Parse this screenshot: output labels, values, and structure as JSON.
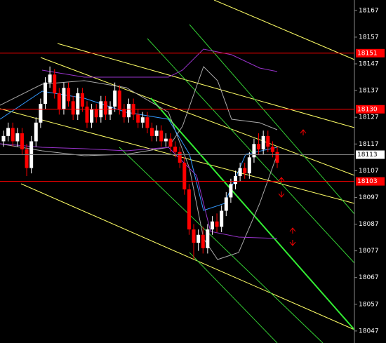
{
  "chart_data": {
    "type": "candlestick",
    "ylim": [
      18042.5,
      18170.9
    ],
    "yticks": [
      18167,
      18157,
      18147,
      18137,
      18127,
      18117,
      18107,
      18097,
      18087,
      18077,
      18067,
      18057,
      18047
    ],
    "up_color": "#ffffff",
    "down_color": "#ff0000",
    "open": [
      18118,
      18120,
      18123,
      18118,
      18121,
      18115,
      18108,
      18118,
      18125,
      18132,
      18140,
      18143,
      18136,
      18130,
      18138,
      18133,
      18128,
      18136,
      18131,
      18125,
      18130,
      18127,
      18133,
      18128,
      18131,
      18137,
      18130,
      18127,
      18132,
      18128,
      18125,
      18127,
      18123,
      18120,
      18122,
      18118,
      18119,
      18116,
      18114,
      18110,
      18100,
      18085,
      18080,
      18083,
      18078,
      18085,
      18088,
      18086,
      18092,
      18097,
      18102,
      18105,
      18108,
      18106,
      18112,
      18117,
      18115,
      18120,
      18116,
      18114
    ],
    "high": [
      18122,
      18125,
      18125,
      18123,
      18123,
      18117,
      18120,
      18127,
      18134,
      18142,
      18146,
      18145,
      18138,
      18140,
      18140,
      18135,
      18138,
      18138,
      18133,
      18132,
      18132,
      18135,
      18135,
      18133,
      18140,
      18139,
      18132,
      18134,
      18134,
      18130,
      18129,
      18129,
      18125,
      18124,
      18124,
      18121,
      18121,
      18118,
      18116,
      18112,
      18102,
      18087,
      18085,
      18086,
      18087,
      18090,
      18091,
      18094,
      18099,
      18104,
      18107,
      18110,
      18110,
      18114,
      18119,
      18121,
      18122,
      18122,
      18118,
      18116
    ],
    "low": [
      18116,
      18118,
      18116,
      18116,
      18113,
      18105,
      18106,
      18116,
      18123,
      18130,
      18138,
      18134,
      18128,
      18128,
      18131,
      18126,
      18126,
      18129,
      18123,
      18123,
      18125,
      18125,
      18126,
      18126,
      18129,
      18128,
      18125,
      18125,
      18126,
      18123,
      18123,
      18121,
      18118,
      18118,
      18116,
      18116,
      18114,
      18112,
      18108,
      18098,
      18083,
      18074,
      18077,
      18076,
      18076,
      18083,
      18084,
      18084,
      18090,
      18095,
      18100,
      18103,
      18104,
      18104,
      18110,
      18113,
      18113,
      18114,
      18112,
      18108
    ],
    "close": [
      18120,
      18123,
      18118,
      18121,
      18115,
      18108,
      18118,
      18125,
      18132,
      18140,
      18143,
      18136,
      18130,
      18138,
      18133,
      18128,
      18136,
      18131,
      18125,
      18130,
      18127,
      18133,
      18128,
      18131,
      18137,
      18130,
      18127,
      18132,
      18128,
      18125,
      18127,
      18123,
      18120,
      18122,
      18118,
      18119,
      18116,
      18114,
      18110,
      18100,
      18085,
      18080,
      18083,
      18078,
      18085,
      18088,
      18086,
      18092,
      18097,
      18102,
      18105,
      18108,
      18106,
      18112,
      18117,
      18115,
      18120,
      18116,
      18114,
      18110
    ],
    "levels": [
      {
        "value": 18151,
        "color": "#ff0000"
      },
      {
        "value": 18130,
        "color": "#ff0000"
      },
      {
        "value": 18103,
        "color": "#ff0000"
      },
      {
        "value": 18113,
        "color": "#808080"
      }
    ]
  }
}
